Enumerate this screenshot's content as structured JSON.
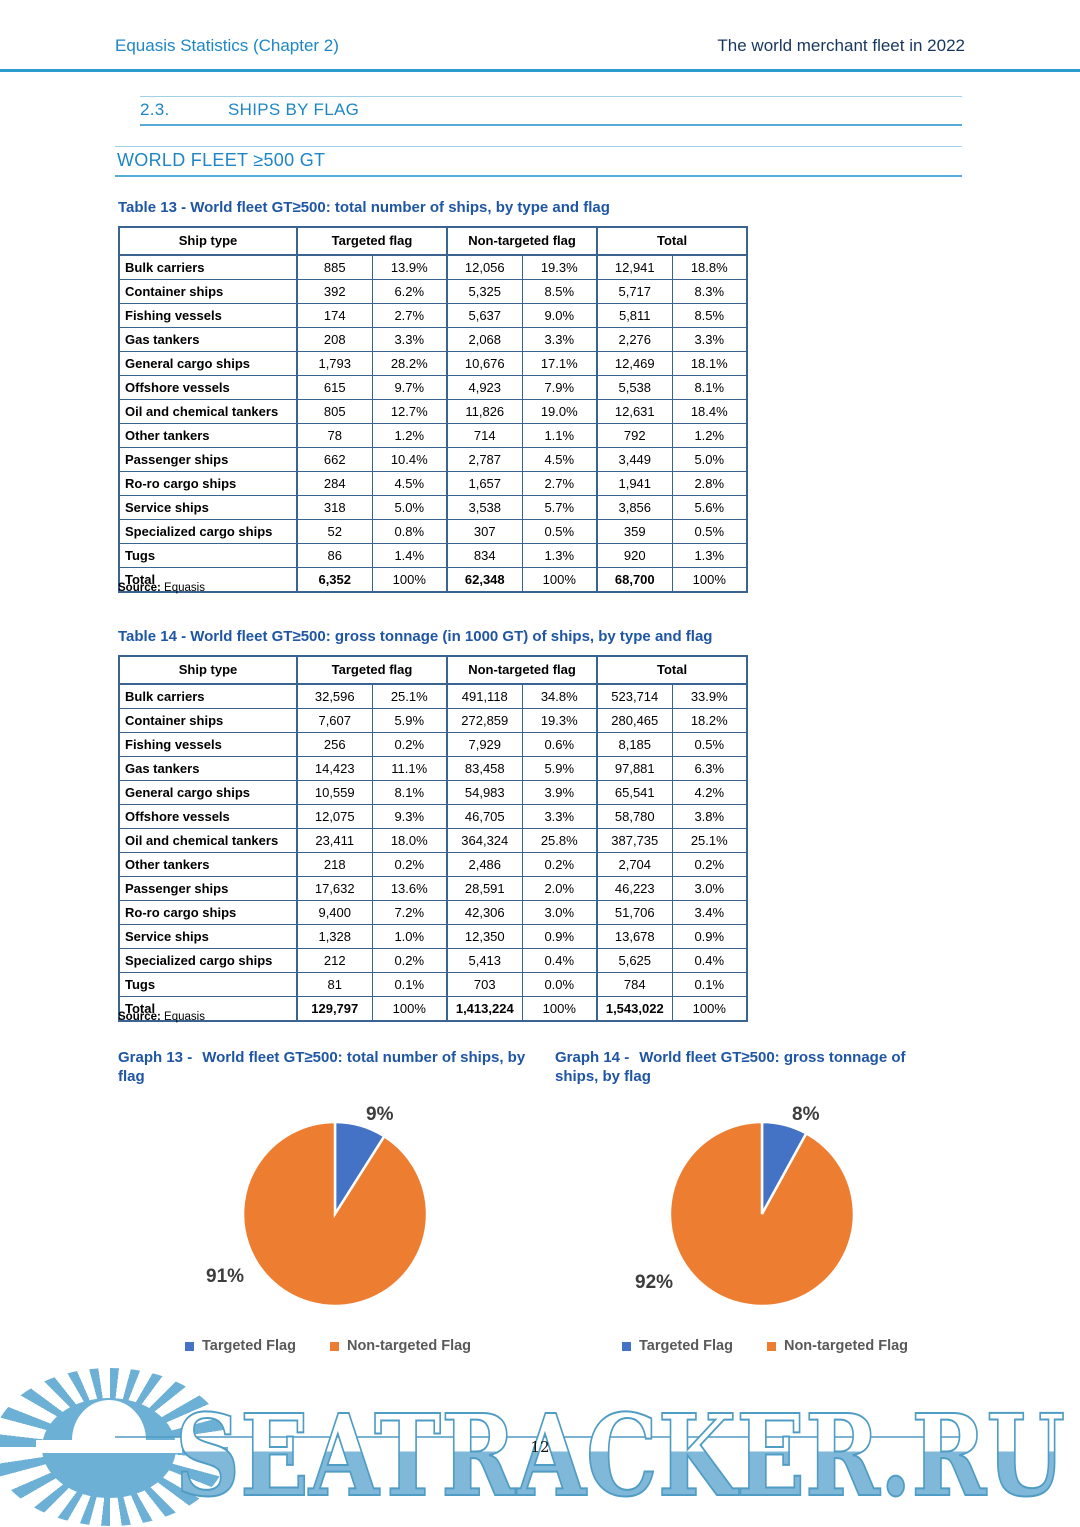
{
  "header": {
    "left_title": "Equasis Statistics (Chapter 2)",
    "right_title": "The world merchant fleet in 2022"
  },
  "section": {
    "number": "2.3.",
    "title": "SHIPS BY FLAG"
  },
  "subsection": "WORLD FLEET ≥500 GT",
  "tables": [
    {
      "title": "Table 13 - World fleet GT≥500: total number of ships, by type and flag",
      "columns": [
        "Ship type",
        "Targeted flag",
        "Non-targeted flag",
        "Total"
      ],
      "rows": [
        [
          "Bulk carriers",
          "885",
          "13.9%",
          "12,056",
          "19.3%",
          "12,941",
          "18.8%"
        ],
        [
          "Container ships",
          "392",
          "6.2%",
          "5,325",
          "8.5%",
          "5,717",
          "8.3%"
        ],
        [
          "Fishing vessels",
          "174",
          "2.7%",
          "5,637",
          "9.0%",
          "5,811",
          "8.5%"
        ],
        [
          "Gas tankers",
          "208",
          "3.3%",
          "2,068",
          "3.3%",
          "2,276",
          "3.3%"
        ],
        [
          "General cargo ships",
          "1,793",
          "28.2%",
          "10,676",
          "17.1%",
          "12,469",
          "18.1%"
        ],
        [
          "Offshore vessels",
          "615",
          "9.7%",
          "4,923",
          "7.9%",
          "5,538",
          "8.1%"
        ],
        [
          "Oil and chemical tankers",
          "805",
          "12.7%",
          "11,826",
          "19.0%",
          "12,631",
          "18.4%"
        ],
        [
          "Other tankers",
          "78",
          "1.2%",
          "714",
          "1.1%",
          "792",
          "1.2%"
        ],
        [
          "Passenger ships",
          "662",
          "10.4%",
          "2,787",
          "4.5%",
          "3,449",
          "5.0%"
        ],
        [
          "Ro-ro cargo ships",
          "284",
          "4.5%",
          "1,657",
          "2.7%",
          "1,941",
          "2.8%"
        ],
        [
          "Service ships",
          "318",
          "5.0%",
          "3,538",
          "5.7%",
          "3,856",
          "5.6%"
        ],
        [
          "Specialized cargo ships",
          "52",
          "0.8%",
          "307",
          "0.5%",
          "359",
          "0.5%"
        ],
        [
          "Tugs",
          "86",
          "1.4%",
          "834",
          "1.3%",
          "920",
          "1.3%"
        ]
      ],
      "total": [
        "Total",
        "6,352",
        "100%",
        "62,348",
        "100%",
        "68,700",
        "100%"
      ],
      "source_label": "Source:",
      "source_value": "Equasis"
    },
    {
      "title": "Table 14 - World fleet GT≥500: gross tonnage (in 1000 GT) of ships, by type and flag",
      "columns": [
        "Ship type",
        "Targeted flag",
        "Non-targeted flag",
        "Total"
      ],
      "rows": [
        [
          "Bulk carriers",
          "32,596",
          "25.1%",
          "491,118",
          "34.8%",
          "523,714",
          "33.9%"
        ],
        [
          "Container ships",
          "7,607",
          "5.9%",
          "272,859",
          "19.3%",
          "280,465",
          "18.2%"
        ],
        [
          "Fishing vessels",
          "256",
          "0.2%",
          "7,929",
          "0.6%",
          "8,185",
          "0.5%"
        ],
        [
          "Gas tankers",
          "14,423",
          "11.1%",
          "83,458",
          "5.9%",
          "97,881",
          "6.3%"
        ],
        [
          "General cargo ships",
          "10,559",
          "8.1%",
          "54,983",
          "3.9%",
          "65,541",
          "4.2%"
        ],
        [
          "Offshore vessels",
          "12,075",
          "9.3%",
          "46,705",
          "3.3%",
          "58,780",
          "3.8%"
        ],
        [
          "Oil and chemical tankers",
          "23,411",
          "18.0%",
          "364,324",
          "25.8%",
          "387,735",
          "25.1%"
        ],
        [
          "Other tankers",
          "218",
          "0.2%",
          "2,486",
          "0.2%",
          "2,704",
          "0.2%"
        ],
        [
          "Passenger ships",
          "17,632",
          "13.6%",
          "28,591",
          "2.0%",
          "46,223",
          "3.0%"
        ],
        [
          "Ro-ro cargo ships",
          "9,400",
          "7.2%",
          "42,306",
          "3.0%",
          "51,706",
          "3.4%"
        ],
        [
          "Service ships",
          "1,328",
          "1.0%",
          "12,350",
          "0.9%",
          "13,678",
          "0.9%"
        ],
        [
          "Specialized cargo ships",
          "212",
          "0.2%",
          "5,413",
          "0.4%",
          "5,625",
          "0.4%"
        ],
        [
          "Tugs",
          "81",
          "0.1%",
          "703",
          "0.0%",
          "784",
          "0.1%"
        ]
      ],
      "total": [
        "Total",
        "129,797",
        "100%",
        "1,413,224",
        "100%",
        "1,543,022",
        "100%"
      ],
      "source_label": "Source:",
      "source_value": "Equasis"
    }
  ],
  "chart_data": [
    {
      "type": "pie",
      "title_label": "Graph 13 -",
      "title": "World fleet GT≥500: total number of ships, by flag",
      "legend_position": "bottom",
      "slices": [
        {
          "label": "Targeted Flag",
          "value": 9,
          "display": "9%",
          "color": "#4472C4"
        },
        {
          "label": "Non-targeted Flag",
          "value": 91,
          "display": "91%",
          "color": "#ED7D31"
        }
      ]
    },
    {
      "type": "pie",
      "title_label": "Graph 14 -",
      "title": "World fleet GT≥500: gross tonnage of ships, by flag",
      "legend_position": "bottom",
      "slices": [
        {
          "label": "Targeted Flag",
          "value": 8,
          "display": "8%",
          "color": "#4472C4"
        },
        {
          "label": "Non-targeted Flag",
          "value": 92,
          "display": "92%",
          "color": "#ED7D31"
        }
      ]
    }
  ],
  "footer": {
    "watermark_text": "SEATRACKER.RU",
    "page_number": "12"
  },
  "colors": {
    "heading_blue": "#1E86C5",
    "dark_navy": "#17365D",
    "table_title_blue": "#1F56A4",
    "table_border": "#3A648F",
    "pie_blue": "#4472C4",
    "pie_orange": "#ED7D31",
    "legend_text": "#595959",
    "watermark_stroke": "#4F9CC4",
    "watermark_fill": "#7FB8D9",
    "rule_teal": "#2E9CCD"
  }
}
